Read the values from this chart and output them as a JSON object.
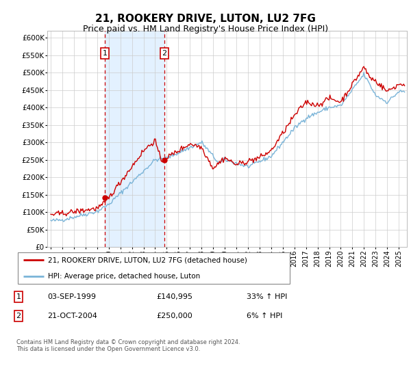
{
  "title": "21, ROOKERY DRIVE, LUTON, LU2 7FG",
  "subtitle": "Price paid vs. HM Land Registry's House Price Index (HPI)",
  "footer": "Contains HM Land Registry data © Crown copyright and database right 2024.\nThis data is licensed under the Open Government Licence v3.0.",
  "legend_line1": "21, ROOKERY DRIVE, LUTON, LU2 7FG (detached house)",
  "legend_line2": "HPI: Average price, detached house, Luton",
  "transaction1_date": "03-SEP-1999",
  "transaction1_price": "£140,995",
  "transaction1_hpi": "33% ↑ HPI",
  "transaction2_date": "21-OCT-2004",
  "transaction2_price": "£250,000",
  "transaction2_hpi": "6% ↑ HPI",
  "ylim": [
    0,
    620000
  ],
  "yticks": [
    0,
    50000,
    100000,
    150000,
    200000,
    250000,
    300000,
    350000,
    400000,
    450000,
    500000,
    550000,
    600000
  ],
  "background_color": "#ffffff",
  "plot_bg_color": "#ffffff",
  "grid_color": "#cccccc",
  "hpi_line_color": "#7ab4d8",
  "price_line_color": "#cc0000",
  "transaction1_x": 1999.67,
  "transaction2_x": 2004.8,
  "shade_color": "#ddeeff",
  "title_fontsize": 11,
  "subtitle_fontsize": 9
}
